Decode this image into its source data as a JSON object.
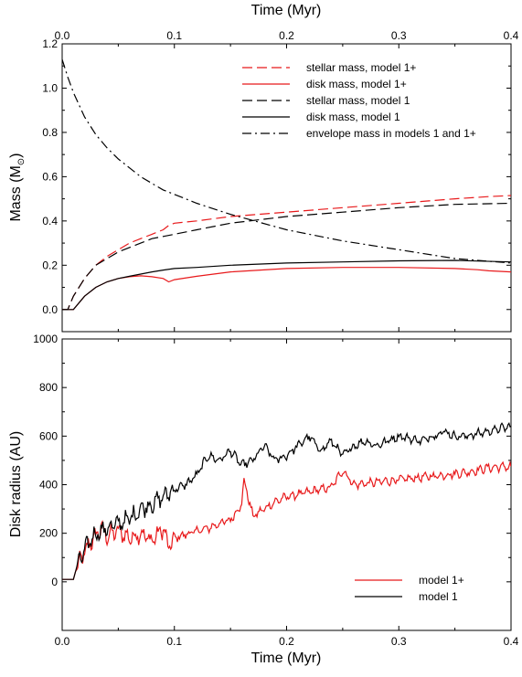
{
  "chart_data": [
    {
      "type": "line",
      "xlabel_top": "Time (Myr)",
      "ylabel": "Mass (M",
      "ylabel_sub": "⊙",
      "ylabel_close": ")",
      "xlim": [
        0.0,
        0.4
      ],
      "ylim": [
        -0.1,
        1.2
      ],
      "x_ticks": [
        "0.0",
        "0.1",
        "0.2",
        "0.3",
        "0.4"
      ],
      "y_ticks": [
        "0.0",
        "0.2",
        "0.4",
        "0.6",
        "0.8",
        "1.0",
        "1.2"
      ],
      "x_tick_values": [
        0.0,
        0.1,
        0.2,
        0.3,
        0.4
      ],
      "y_tick_values": [
        0.0,
        0.2,
        0.4,
        0.6,
        0.8,
        1.0,
        1.2
      ],
      "legend_position": "top-right",
      "series": [
        {
          "name": "stellar mass, model 1+",
          "color": "#e8191b",
          "style": "dashed",
          "x": [
            0.0,
            0.005,
            0.01,
            0.02,
            0.03,
            0.04,
            0.05,
            0.06,
            0.07,
            0.08,
            0.09,
            0.095,
            0.1,
            0.12,
            0.15,
            0.2,
            0.25,
            0.3,
            0.35,
            0.38,
            0.4
          ],
          "y": [
            0.0,
            0.0,
            0.06,
            0.14,
            0.2,
            0.24,
            0.27,
            0.3,
            0.32,
            0.34,
            0.36,
            0.38,
            0.39,
            0.4,
            0.42,
            0.44,
            0.46,
            0.48,
            0.5,
            0.51,
            0.515
          ]
        },
        {
          "name": "disk mass, model 1+",
          "color": "#e8191b",
          "style": "solid",
          "x": [
            0.0,
            0.01,
            0.02,
            0.03,
            0.04,
            0.05,
            0.06,
            0.07,
            0.08,
            0.09,
            0.095,
            0.1,
            0.12,
            0.15,
            0.2,
            0.25,
            0.3,
            0.35,
            0.37,
            0.38,
            0.4
          ],
          "y": [
            0.0,
            0.0,
            0.06,
            0.1,
            0.125,
            0.14,
            0.148,
            0.152,
            0.148,
            0.14,
            0.125,
            0.135,
            0.15,
            0.17,
            0.185,
            0.19,
            0.19,
            0.185,
            0.18,
            0.175,
            0.17
          ]
        },
        {
          "name": "stellar mass,  model 1",
          "color": "#000000",
          "style": "dashed",
          "x": [
            0.0,
            0.005,
            0.01,
            0.02,
            0.03,
            0.04,
            0.05,
            0.06,
            0.07,
            0.08,
            0.09,
            0.1,
            0.12,
            0.15,
            0.2,
            0.25,
            0.3,
            0.35,
            0.4
          ],
          "y": [
            0.0,
            0.0,
            0.06,
            0.14,
            0.2,
            0.23,
            0.26,
            0.28,
            0.3,
            0.32,
            0.33,
            0.34,
            0.36,
            0.39,
            0.42,
            0.44,
            0.46,
            0.475,
            0.48
          ]
        },
        {
          "name": "disk mass, model 1",
          "color": "#000000",
          "style": "solid",
          "x": [
            0.0,
            0.01,
            0.02,
            0.03,
            0.04,
            0.05,
            0.06,
            0.07,
            0.08,
            0.09,
            0.1,
            0.12,
            0.15,
            0.2,
            0.25,
            0.3,
            0.35,
            0.4
          ],
          "y": [
            0.0,
            0.0,
            0.06,
            0.1,
            0.125,
            0.14,
            0.15,
            0.16,
            0.17,
            0.178,
            0.185,
            0.19,
            0.2,
            0.21,
            0.215,
            0.22,
            0.222,
            0.215
          ]
        },
        {
          "name": "envelope mass in models 1 and 1+",
          "color": "#000000",
          "style": "dashdot",
          "x": [
            0.0,
            0.005,
            0.01,
            0.02,
            0.03,
            0.04,
            0.05,
            0.06,
            0.07,
            0.08,
            0.09,
            0.1,
            0.12,
            0.15,
            0.2,
            0.25,
            0.3,
            0.35,
            0.4
          ],
          "y": [
            1.13,
            1.05,
            0.98,
            0.87,
            0.79,
            0.73,
            0.68,
            0.64,
            0.6,
            0.57,
            0.54,
            0.52,
            0.48,
            0.43,
            0.36,
            0.31,
            0.27,
            0.23,
            0.21
          ]
        }
      ]
    },
    {
      "type": "line",
      "xlabel": "Time (Myr)",
      "ylabel": "Disk radius (AU)",
      "xlim": [
        0.0,
        0.4
      ],
      "ylim": [
        -200,
        1000
      ],
      "x_ticks": [
        "0.0",
        "0.1",
        "0.2",
        "0.3",
        "0.4"
      ],
      "y_ticks": [
        "0",
        "200",
        "400",
        "600",
        "800",
        "1000"
      ],
      "x_tick_values": [
        0.0,
        0.1,
        0.2,
        0.3,
        0.4
      ],
      "y_tick_values": [
        0,
        200,
        400,
        600,
        800,
        1000
      ],
      "legend_position": "bottom-right",
      "series": [
        {
          "name": "model 1+",
          "color": "#e8191b",
          "style": "solid",
          "x": [
            0.0,
            0.01,
            0.013,
            0.02,
            0.025,
            0.03,
            0.035,
            0.04,
            0.05,
            0.06,
            0.07,
            0.08,
            0.09,
            0.095,
            0.1,
            0.11,
            0.12,
            0.13,
            0.14,
            0.15,
            0.16,
            0.162,
            0.17,
            0.18,
            0.19,
            0.2,
            0.22,
            0.24,
            0.25,
            0.26,
            0.28,
            0.3,
            0.32,
            0.34,
            0.36,
            0.38,
            0.4
          ],
          "y": [
            10,
            10,
            60,
            120,
            160,
            190,
            220,
            190,
            210,
            180,
            200,
            170,
            220,
            140,
            180,
            195,
            210,
            220,
            240,
            255,
            320,
            420,
            270,
            300,
            330,
            350,
            370,
            390,
            460,
            400,
            410,
            420,
            430,
            440,
            450,
            470,
            475
          ]
        },
        {
          "name": "model 1",
          "color": "#000000",
          "style": "solid",
          "x": [
            0.0,
            0.01,
            0.013,
            0.02,
            0.025,
            0.03,
            0.04,
            0.05,
            0.06,
            0.07,
            0.08,
            0.09,
            0.1,
            0.11,
            0.12,
            0.13,
            0.14,
            0.15,
            0.16,
            0.17,
            0.18,
            0.19,
            0.2,
            0.21,
            0.22,
            0.23,
            0.24,
            0.25,
            0.26,
            0.27,
            0.28,
            0.3,
            0.32,
            0.34,
            0.35,
            0.36,
            0.38,
            0.4
          ],
          "y": [
            10,
            10,
            60,
            130,
            170,
            200,
            220,
            240,
            260,
            300,
            320,
            350,
            380,
            400,
            440,
            520,
            500,
            540,
            480,
            500,
            560,
            500,
            520,
            560,
            600,
            540,
            580,
            520,
            560,
            580,
            560,
            600,
            580,
            620,
            600,
            600,
            620,
            640
          ]
        }
      ]
    }
  ]
}
